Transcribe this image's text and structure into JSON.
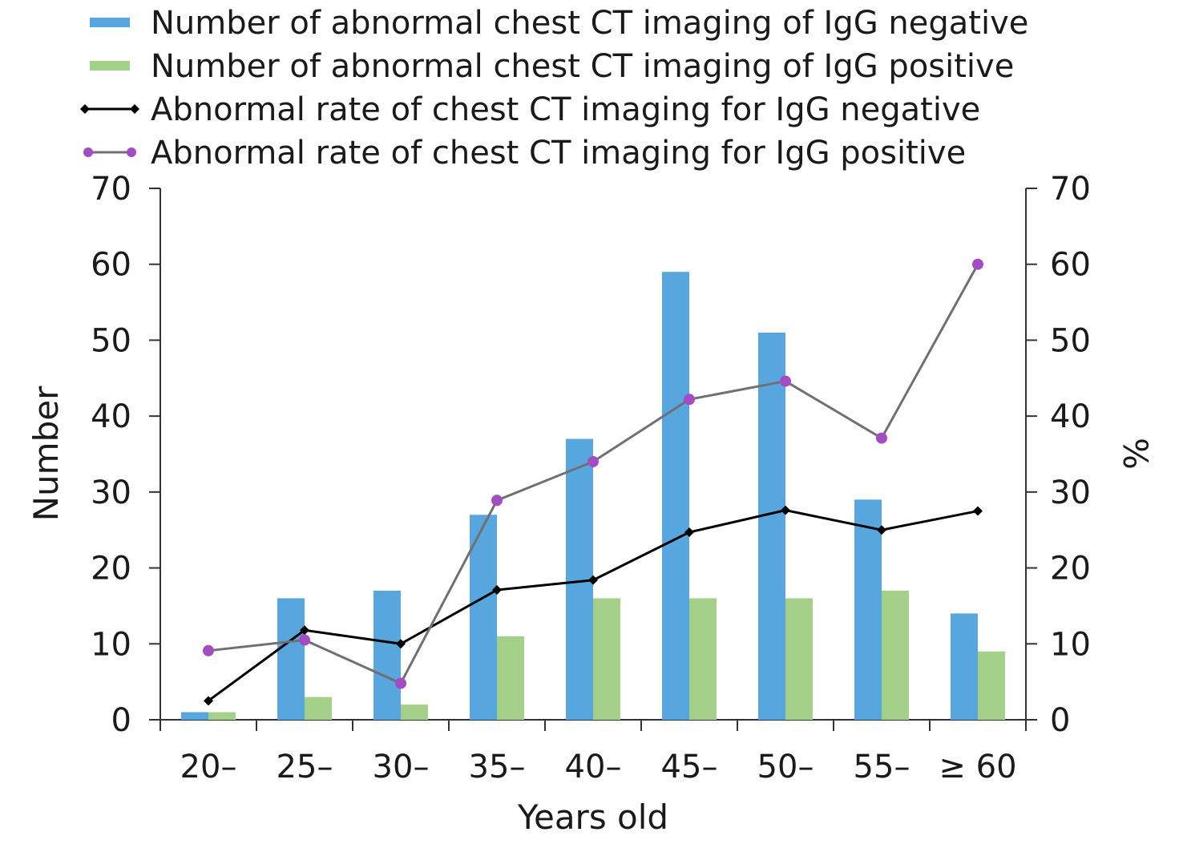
{
  "chart_data": {
    "type": "bar",
    "categories": [
      "20–",
      "25–",
      "30–",
      "35–",
      "40–",
      "45–",
      "50–",
      "55–",
      "≥ 60"
    ],
    "bar_series": [
      {
        "name": "Number of abnormal chest CT imaging of IgG negative",
        "color": "#58a6de",
        "values": [
          1,
          16,
          17,
          27,
          37,
          59,
          51,
          29,
          14
        ]
      },
      {
        "name": "Number of abnormal chest CT imaging of IgG positive",
        "color": "#a3d18a",
        "values": [
          1,
          3,
          2,
          11,
          16,
          16,
          16,
          17,
          9
        ]
      }
    ],
    "line_series": [
      {
        "name": "Abnormal rate of chest CT imaging for IgG negative",
        "line_color": "#000000",
        "marker_color": "#000000",
        "marker": "diamond",
        "values": [
          2.5,
          11.8,
          10.0,
          17.1,
          18.4,
          24.7,
          27.6,
          25.0,
          27.5
        ]
      },
      {
        "name": "Abnormal rate of chest CT imaging for IgG positive",
        "line_color": "#707070",
        "marker_color": "#a44cc4",
        "marker": "circle",
        "values": [
          9.1,
          10.5,
          4.8,
          28.9,
          34.0,
          42.2,
          44.6,
          37.1,
          60.0
        ]
      }
    ],
    "xlabel": "Years old",
    "ylabel": "Number",
    "y2label": "%",
    "ylim": [
      0,
      70
    ],
    "y2lim": [
      0,
      70
    ],
    "yticks": [
      0,
      10,
      20,
      30,
      40,
      50,
      60,
      70
    ],
    "grid": false,
    "legend_position": "top"
  }
}
